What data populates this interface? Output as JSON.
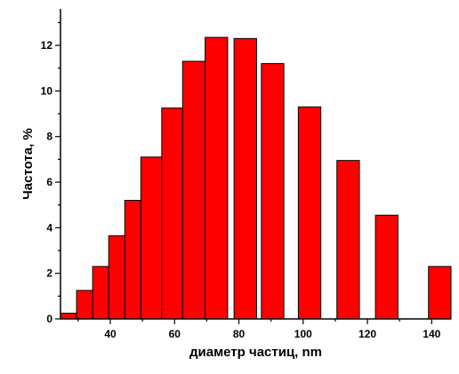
{
  "chart_data": {
    "type": "bar",
    "title": "",
    "xlabel": "диаметр частиц, nm",
    "ylabel": "Частота, %",
    "xlim": [
      24.5,
      146
    ],
    "ylim": [
      0,
      13.6
    ],
    "x_ticks": [
      40,
      60,
      80,
      100,
      120,
      140
    ],
    "y_ticks": [
      0,
      2,
      4,
      6,
      8,
      10,
      12
    ],
    "grid": false,
    "bar_color": "#ff0000",
    "bar_edge_color": "#000000",
    "bars": [
      {
        "x0": 24.5,
        "x1": 29.5,
        "value": 0.25
      },
      {
        "x0": 29.5,
        "x1": 34.5,
        "value": 1.25
      },
      {
        "x0": 34.5,
        "x1": 39.5,
        "value": 2.3
      },
      {
        "x0": 39.5,
        "x1": 44.5,
        "value": 3.65
      },
      {
        "x0": 44.5,
        "x1": 49.5,
        "value": 5.2
      },
      {
        "x0": 49.5,
        "x1": 56.0,
        "value": 7.1
      },
      {
        "x0": 56.0,
        "x1": 62.5,
        "value": 9.25
      },
      {
        "x0": 62.5,
        "x1": 69.5,
        "value": 11.3
      },
      {
        "x0": 69.5,
        "x1": 76.5,
        "value": 12.35
      },
      {
        "x0": 78.5,
        "x1": 85.5,
        "value": 12.3
      },
      {
        "x0": 87.0,
        "x1": 94.0,
        "value": 11.2
      },
      {
        "x0": 98.5,
        "x1": 105.5,
        "value": 9.3
      },
      {
        "x0": 110.5,
        "x1": 117.5,
        "value": 6.95
      },
      {
        "x0": 122.5,
        "x1": 129.5,
        "value": 4.55
      },
      {
        "x0": 139.0,
        "x1": 146.0,
        "value": 2.3
      }
    ]
  }
}
